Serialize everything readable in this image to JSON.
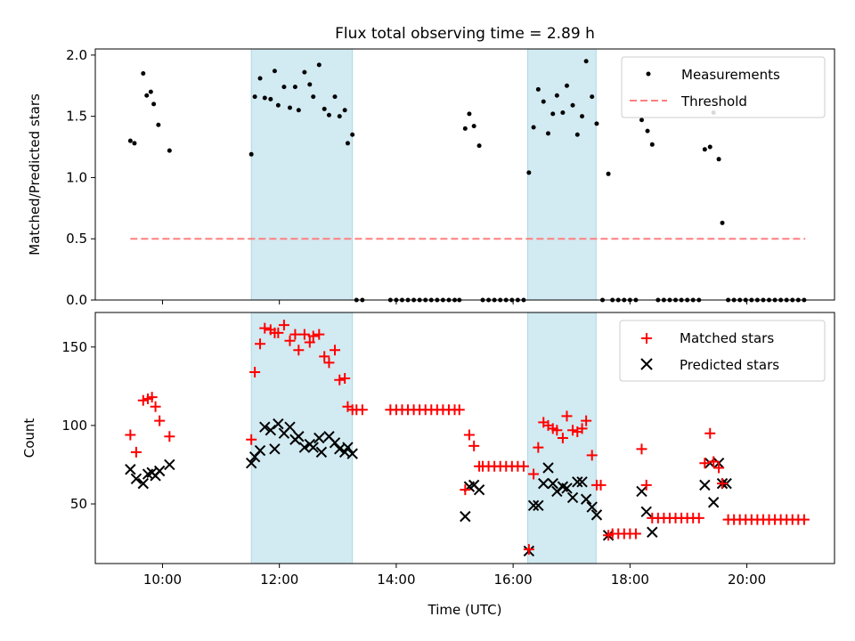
{
  "chart_data": {
    "title": "Flux total observing time = 2.89 h",
    "xlabel": "Time (UTC)",
    "x_units": "hours UTC",
    "xlim": [
      8.85,
      21.5
    ],
    "x_ticks": [
      {
        "value": 10,
        "label": "10:00"
      },
      {
        "value": 12,
        "label": "12:00"
      },
      {
        "value": 14,
        "label": "14:00"
      },
      {
        "value": 16,
        "label": "16:00"
      },
      {
        "value": 18,
        "label": "18:00"
      },
      {
        "value": 20,
        "label": "20:00"
      }
    ],
    "shaded_intervals": [
      [
        11.52,
        13.25
      ],
      [
        16.25,
        17.42
      ]
    ],
    "shade_color": "#add8e6",
    "top": {
      "type": "scatter",
      "ylabel": "Matched/Predicted stars",
      "ylim": [
        0,
        2.05
      ],
      "y_ticks": [
        0.0,
        0.5,
        1.0,
        1.5,
        2.0
      ],
      "y_tick_labels": [
        "0.0",
        "0.5",
        "1.0",
        "1.5",
        "2.0"
      ],
      "legend": [
        {
          "label": "Measurements",
          "marker": "dot",
          "color": "#000000"
        },
        {
          "label": "Threshold",
          "marker": "dashed-line",
          "color": "#ff7f7f"
        }
      ],
      "threshold": {
        "value": 0.5,
        "x": [
          9.45,
          21.0
        ],
        "color": "#ff7f7f"
      },
      "measurements": [
        [
          9.45,
          1.3
        ],
        [
          9.52,
          1.28
        ],
        [
          9.67,
          1.85
        ],
        [
          9.73,
          1.67
        ],
        [
          9.8,
          1.7
        ],
        [
          9.85,
          1.6
        ],
        [
          9.93,
          1.43
        ],
        [
          10.12,
          1.22
        ],
        [
          11.52,
          1.19
        ],
        [
          11.58,
          1.66
        ],
        [
          11.67,
          1.81
        ],
        [
          11.75,
          1.65
        ],
        [
          11.85,
          1.64
        ],
        [
          11.92,
          1.87
        ],
        [
          11.98,
          1.59
        ],
        [
          12.08,
          1.74
        ],
        [
          12.18,
          1.57
        ],
        [
          12.27,
          1.74
        ],
        [
          12.33,
          1.55
        ],
        [
          12.43,
          1.86
        ],
        [
          12.52,
          1.76
        ],
        [
          12.58,
          1.66
        ],
        [
          12.68,
          1.92
        ],
        [
          12.77,
          1.56
        ],
        [
          12.85,
          1.51
        ],
        [
          12.95,
          1.66
        ],
        [
          13.03,
          1.5
        ],
        [
          13.12,
          1.55
        ],
        [
          13.17,
          1.28
        ],
        [
          13.25,
          1.35
        ],
        [
          13.32,
          0
        ],
        [
          13.42,
          0
        ],
        [
          13.9,
          0
        ],
        [
          14.0,
          0
        ],
        [
          14.1,
          0
        ],
        [
          14.2,
          0
        ],
        [
          14.3,
          0
        ],
        [
          14.4,
          0
        ],
        [
          14.5,
          0
        ],
        [
          14.6,
          0
        ],
        [
          14.7,
          0
        ],
        [
          14.8,
          0
        ],
        [
          14.9,
          0
        ],
        [
          15.0,
          0
        ],
        [
          15.08,
          0
        ],
        [
          15.18,
          1.4
        ],
        [
          15.25,
          1.52
        ],
        [
          15.33,
          1.42
        ],
        [
          15.42,
          1.26
        ],
        [
          15.48,
          0
        ],
        [
          15.58,
          0
        ],
        [
          15.68,
          0
        ],
        [
          15.78,
          0
        ],
        [
          15.88,
          0
        ],
        [
          15.98,
          0
        ],
        [
          16.08,
          0
        ],
        [
          16.18,
          0
        ],
        [
          16.27,
          1.04
        ],
        [
          16.35,
          1.41
        ],
        [
          16.43,
          1.72
        ],
        [
          16.52,
          1.62
        ],
        [
          16.6,
          1.36
        ],
        [
          16.68,
          1.52
        ],
        [
          16.75,
          1.67
        ],
        [
          16.85,
          1.53
        ],
        [
          16.92,
          1.75
        ],
        [
          17.02,
          1.59
        ],
        [
          17.1,
          1.35
        ],
        [
          17.18,
          1.5
        ],
        [
          17.25,
          1.95
        ],
        [
          17.35,
          1.66
        ],
        [
          17.43,
          1.44
        ],
        [
          17.53,
          0
        ],
        [
          17.63,
          1.03
        ],
        [
          17.7,
          0
        ],
        [
          17.8,
          0
        ],
        [
          17.9,
          0
        ],
        [
          18.0,
          0
        ],
        [
          18.1,
          0
        ],
        [
          18.2,
          1.47
        ],
        [
          18.3,
          1.38
        ],
        [
          18.38,
          1.27
        ],
        [
          18.48,
          0
        ],
        [
          18.58,
          0
        ],
        [
          18.68,
          0
        ],
        [
          18.78,
          0
        ],
        [
          18.88,
          0
        ],
        [
          18.98,
          0
        ],
        [
          19.08,
          0
        ],
        [
          19.18,
          0
        ],
        [
          19.28,
          1.23
        ],
        [
          19.37,
          1.25
        ],
        [
          19.43,
          1.53
        ],
        [
          19.52,
          1.15
        ],
        [
          19.58,
          0.63
        ],
        [
          19.68,
          0
        ],
        [
          19.78,
          0
        ],
        [
          19.88,
          0
        ],
        [
          19.98,
          0
        ],
        [
          20.08,
          0
        ],
        [
          20.18,
          0
        ],
        [
          20.28,
          0
        ],
        [
          20.38,
          0
        ],
        [
          20.48,
          0
        ],
        [
          20.58,
          0
        ],
        [
          20.68,
          0
        ],
        [
          20.78,
          0
        ],
        [
          20.88,
          0
        ],
        [
          20.98,
          0
        ]
      ]
    },
    "bottom": {
      "type": "scatter",
      "ylabel": "Count",
      "ylim": [
        12,
        172
      ],
      "y_ticks": [
        50,
        100,
        150
      ],
      "y_tick_labels": [
        "50",
        "100",
        "150"
      ],
      "legend": [
        {
          "label": "Matched stars",
          "marker": "plus",
          "color": "#ff0000"
        },
        {
          "label": "Predicted stars",
          "marker": "cross",
          "color": "#000000"
        }
      ],
      "matched": [
        [
          9.45,
          94
        ],
        [
          9.55,
          83
        ],
        [
          9.67,
          116
        ],
        [
          9.75,
          117
        ],
        [
          9.82,
          118
        ],
        [
          9.88,
          112
        ],
        [
          9.95,
          103
        ],
        [
          10.12,
          93
        ],
        [
          11.52,
          91
        ],
        [
          11.58,
          134
        ],
        [
          11.67,
          152
        ],
        [
          11.75,
          162
        ],
        [
          11.85,
          161
        ],
        [
          11.92,
          159
        ],
        [
          11.98,
          159
        ],
        [
          12.08,
          164
        ],
        [
          12.18,
          154
        ],
        [
          12.27,
          158
        ],
        [
          12.33,
          148
        ],
        [
          12.43,
          158
        ],
        [
          12.52,
          153
        ],
        [
          12.58,
          157
        ],
        [
          12.68,
          158
        ],
        [
          12.77,
          144
        ],
        [
          12.85,
          140
        ],
        [
          12.95,
          148
        ],
        [
          13.03,
          129
        ],
        [
          13.12,
          130
        ],
        [
          13.17,
          112
        ],
        [
          13.25,
          110
        ],
        [
          13.32,
          110
        ],
        [
          13.42,
          110
        ],
        [
          13.9,
          110
        ],
        [
          14.0,
          110
        ],
        [
          14.1,
          110
        ],
        [
          14.2,
          110
        ],
        [
          14.3,
          110
        ],
        [
          14.4,
          110
        ],
        [
          14.5,
          110
        ],
        [
          14.6,
          110
        ],
        [
          14.7,
          110
        ],
        [
          14.8,
          110
        ],
        [
          14.9,
          110
        ],
        [
          15.0,
          110
        ],
        [
          15.08,
          110
        ],
        [
          15.18,
          59
        ],
        [
          15.25,
          94
        ],
        [
          15.33,
          87
        ],
        [
          15.42,
          74
        ],
        [
          15.48,
          74
        ],
        [
          15.58,
          74
        ],
        [
          15.68,
          74
        ],
        [
          15.78,
          74
        ],
        [
          15.88,
          74
        ],
        [
          15.98,
          74
        ],
        [
          16.08,
          74
        ],
        [
          16.18,
          74
        ],
        [
          16.27,
          21
        ],
        [
          16.35,
          69
        ],
        [
          16.43,
          86
        ],
        [
          16.52,
          102
        ],
        [
          16.6,
          100
        ],
        [
          16.68,
          98
        ],
        [
          16.75,
          97
        ],
        [
          16.85,
          92
        ],
        [
          16.92,
          106
        ],
        [
          17.02,
          97
        ],
        [
          17.1,
          96
        ],
        [
          17.18,
          98
        ],
        [
          17.25,
          103
        ],
        [
          17.35,
          81
        ],
        [
          17.43,
          62
        ],
        [
          17.5,
          62
        ],
        [
          17.63,
          30
        ],
        [
          17.7,
          31
        ],
        [
          17.8,
          31
        ],
        [
          17.9,
          31
        ],
        [
          18.0,
          31
        ],
        [
          18.1,
          31
        ],
        [
          18.2,
          85
        ],
        [
          18.28,
          62
        ],
        [
          18.38,
          41
        ],
        [
          18.48,
          41
        ],
        [
          18.58,
          41
        ],
        [
          18.68,
          41
        ],
        [
          18.78,
          41
        ],
        [
          18.88,
          41
        ],
        [
          18.98,
          41
        ],
        [
          19.08,
          41
        ],
        [
          19.18,
          41
        ],
        [
          19.28,
          76
        ],
        [
          19.37,
          95
        ],
        [
          19.43,
          77
        ],
        [
          19.52,
          73
        ],
        [
          19.58,
          63
        ],
        [
          19.68,
          40
        ],
        [
          19.78,
          40
        ],
        [
          19.88,
          40
        ],
        [
          19.98,
          40
        ],
        [
          20.08,
          40
        ],
        [
          20.18,
          40
        ],
        [
          20.28,
          40
        ],
        [
          20.38,
          40
        ],
        [
          20.48,
          40
        ],
        [
          20.58,
          40
        ],
        [
          20.68,
          40
        ],
        [
          20.78,
          40
        ],
        [
          20.88,
          40
        ],
        [
          20.98,
          40
        ]
      ],
      "predicted": [
        [
          9.45,
          72
        ],
        [
          9.55,
          66
        ],
        [
          9.67,
          63
        ],
        [
          9.75,
          69
        ],
        [
          9.82,
          70
        ],
        [
          9.88,
          68
        ],
        [
          9.95,
          71
        ],
        [
          10.12,
          75
        ],
        [
          11.52,
          76
        ],
        [
          11.58,
          80
        ],
        [
          11.67,
          84
        ],
        [
          11.75,
          99
        ],
        [
          11.85,
          97
        ],
        [
          11.92,
          85
        ],
        [
          11.98,
          101
        ],
        [
          12.08,
          95
        ],
        [
          12.18,
          99
        ],
        [
          12.27,
          91
        ],
        [
          12.33,
          93
        ],
        [
          12.43,
          86
        ],
        [
          12.52,
          88
        ],
        [
          12.58,
          86
        ],
        [
          12.68,
          92
        ],
        [
          12.72,
          83
        ],
        [
          12.85,
          93
        ],
        [
          12.95,
          89
        ],
        [
          13.03,
          85
        ],
        [
          13.12,
          83
        ],
        [
          13.17,
          86
        ],
        [
          13.25,
          82
        ],
        [
          15.18,
          42
        ],
        [
          15.25,
          61
        ],
        [
          15.33,
          62
        ],
        [
          15.42,
          59
        ],
        [
          16.27,
          20
        ],
        [
          16.35,
          49
        ],
        [
          16.43,
          49
        ],
        [
          16.52,
          63
        ],
        [
          16.6,
          73
        ],
        [
          16.68,
          63
        ],
        [
          16.75,
          58
        ],
        [
          16.85,
          61
        ],
        [
          16.92,
          60
        ],
        [
          17.02,
          54
        ],
        [
          17.1,
          64
        ],
        [
          17.18,
          64
        ],
        [
          17.25,
          53
        ],
        [
          17.35,
          48
        ],
        [
          17.43,
          43
        ],
        [
          17.63,
          30
        ],
        [
          18.2,
          58
        ],
        [
          18.28,
          45
        ],
        [
          18.38,
          32
        ],
        [
          19.28,
          62
        ],
        [
          19.37,
          76
        ],
        [
          19.43,
          51
        ],
        [
          19.52,
          76
        ],
        [
          19.58,
          63
        ],
        [
          19.65,
          63
        ]
      ]
    }
  }
}
